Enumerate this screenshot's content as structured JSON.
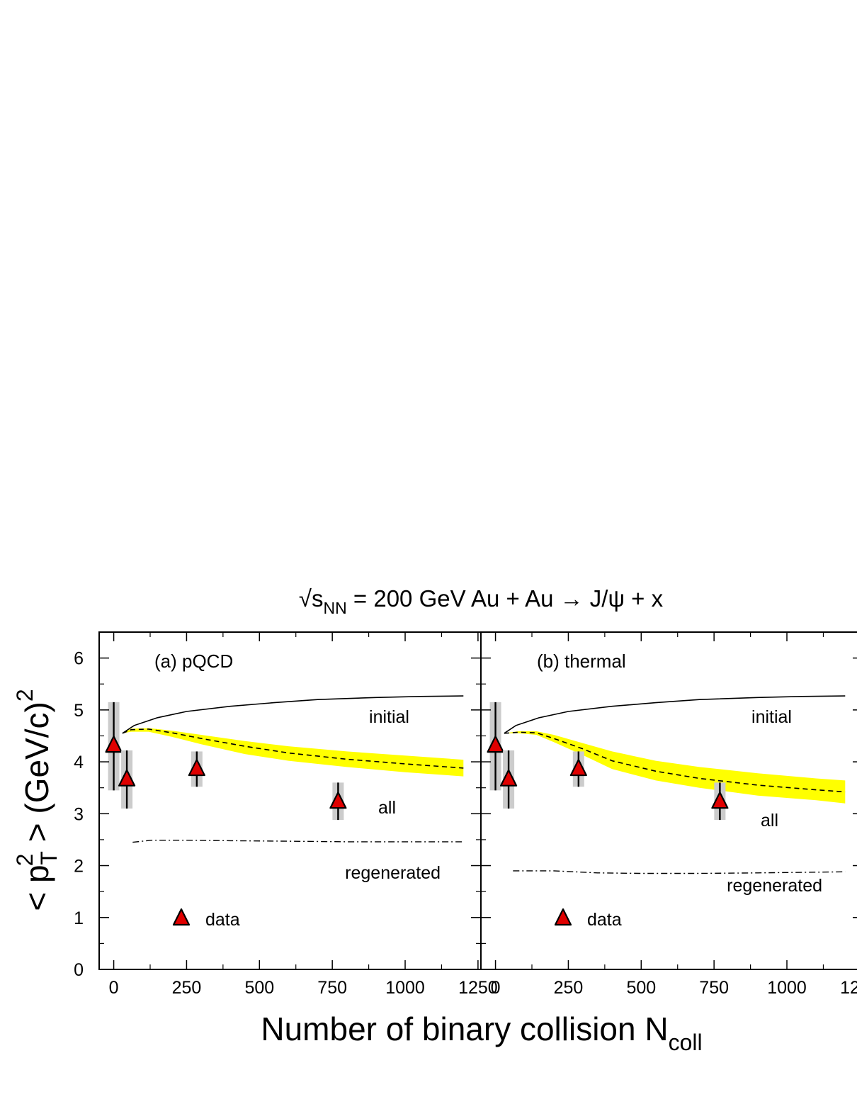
{
  "chart_data": {
    "title_parts": {
      "root": "√",
      "s": "s",
      "sub": "NN",
      "rest": " = 200 GeV Au + Au → J/ψ + x"
    },
    "xlabel_parts": {
      "main": "Number of binary collision N",
      "sub": "coll"
    },
    "ylabel_parts": {
      "lt": "< p",
      "sup": "2",
      "sub": "T",
      "gt": " > (GeV/c)",
      "exp": "2"
    },
    "xlim": [
      -50,
      1260
    ],
    "ylim": [
      0,
      6.5
    ],
    "xticks": [
      0,
      250,
      500,
      750,
      1000,
      1250
    ],
    "xtick_labels": [
      "0",
      "250",
      "500",
      "750",
      "1000",
      "1250"
    ],
    "yticks": [
      0,
      1,
      2,
      3,
      4,
      5,
      6
    ],
    "ytick_labels": [
      "0",
      "1",
      "2",
      "3",
      "4",
      "5",
      "6"
    ],
    "colors": {
      "band": "#ffff00",
      "marker": "#e00000",
      "syst": "#cccccc",
      "line": "#000000"
    },
    "data_series": {
      "name": "data",
      "points": [
        {
          "x": 0,
          "y": 4.3,
          "ylo": 3.45,
          "yhi": 5.15,
          "slo": 3.45,
          "shi": 5.15
        },
        {
          "x": 45,
          "y": 3.65,
          "ylo": 3.1,
          "yhi": 4.22,
          "slo": 3.1,
          "shi": 4.22
        },
        {
          "x": 285,
          "y": 3.85,
          "ylo": 3.52,
          "yhi": 4.2,
          "slo": 3.52,
          "shi": 4.2
        },
        {
          "x": 770,
          "y": 3.22,
          "ylo": 2.88,
          "yhi": 3.6,
          "slo": 2.88,
          "shi": 3.6
        }
      ]
    },
    "panels": [
      {
        "label": "(a) pQCD",
        "labels": {
          "initial": "initial",
          "all": "all",
          "regenerated": "regenerated"
        },
        "initial": [
          [
            30,
            4.55
          ],
          [
            70,
            4.7
          ],
          [
            150,
            4.85
          ],
          [
            250,
            4.97
          ],
          [
            400,
            5.07
          ],
          [
            550,
            5.14
          ],
          [
            700,
            5.2
          ],
          [
            900,
            5.24
          ],
          [
            1050,
            5.26
          ],
          [
            1200,
            5.27
          ]
        ],
        "all": [
          [
            30,
            4.55
          ],
          [
            60,
            4.62
          ],
          [
            120,
            4.63
          ],
          [
            200,
            4.56
          ],
          [
            300,
            4.45
          ],
          [
            450,
            4.3
          ],
          [
            600,
            4.17
          ],
          [
            800,
            4.05
          ],
          [
            1000,
            3.96
          ],
          [
            1200,
            3.88
          ]
        ],
        "band_upper": [
          [
            30,
            4.55
          ],
          [
            60,
            4.64
          ],
          [
            120,
            4.65
          ],
          [
            200,
            4.6
          ],
          [
            300,
            4.52
          ],
          [
            450,
            4.4
          ],
          [
            600,
            4.3
          ],
          [
            800,
            4.2
          ],
          [
            1000,
            4.12
          ],
          [
            1200,
            4.04
          ]
        ],
        "band_lower": [
          [
            30,
            4.55
          ],
          [
            60,
            4.58
          ],
          [
            120,
            4.58
          ],
          [
            200,
            4.48
          ],
          [
            300,
            4.34
          ],
          [
            450,
            4.15
          ],
          [
            600,
            4.02
          ],
          [
            800,
            3.9
          ],
          [
            1000,
            3.8
          ],
          [
            1200,
            3.72
          ]
        ],
        "regenerated": [
          [
            65,
            2.45
          ],
          [
            130,
            2.49
          ],
          [
            250,
            2.49
          ],
          [
            400,
            2.48
          ],
          [
            600,
            2.47
          ],
          [
            800,
            2.46
          ],
          [
            1000,
            2.46
          ],
          [
            1200,
            2.46
          ]
        ]
      },
      {
        "label": "(b) thermal",
        "labels": {
          "initial": "initial",
          "all": "all",
          "regenerated": "regenerated"
        },
        "initial": [
          [
            30,
            4.55
          ],
          [
            70,
            4.7
          ],
          [
            150,
            4.85
          ],
          [
            250,
            4.97
          ],
          [
            400,
            5.07
          ],
          [
            550,
            5.14
          ],
          [
            700,
            5.2
          ],
          [
            900,
            5.24
          ],
          [
            1050,
            5.26
          ],
          [
            1200,
            5.27
          ]
        ],
        "all": [
          [
            30,
            4.55
          ],
          [
            80,
            4.57
          ],
          [
            140,
            4.56
          ],
          [
            200,
            4.45
          ],
          [
            300,
            4.25
          ],
          [
            400,
            4.02
          ],
          [
            550,
            3.82
          ],
          [
            700,
            3.68
          ],
          [
            900,
            3.55
          ],
          [
            1100,
            3.46
          ],
          [
            1200,
            3.42
          ]
        ],
        "band_upper": [
          [
            30,
            4.55
          ],
          [
            80,
            4.59
          ],
          [
            140,
            4.59
          ],
          [
            200,
            4.52
          ],
          [
            300,
            4.36
          ],
          [
            400,
            4.2
          ],
          [
            550,
            4.02
          ],
          [
            700,
            3.9
          ],
          [
            900,
            3.78
          ],
          [
            1100,
            3.68
          ],
          [
            1200,
            3.64
          ]
        ],
        "band_lower": [
          [
            30,
            4.55
          ],
          [
            80,
            4.55
          ],
          [
            140,
            4.52
          ],
          [
            200,
            4.38
          ],
          [
            300,
            4.13
          ],
          [
            400,
            3.86
          ],
          [
            550,
            3.64
          ],
          [
            700,
            3.5
          ],
          [
            900,
            3.35
          ],
          [
            1100,
            3.26
          ],
          [
            1200,
            3.2
          ]
        ],
        "regenerated": [
          [
            60,
            1.9
          ],
          [
            200,
            1.9
          ],
          [
            350,
            1.86
          ],
          [
            500,
            1.85
          ],
          [
            700,
            1.85
          ],
          [
            900,
            1.86
          ],
          [
            1200,
            1.88
          ]
        ]
      }
    ]
  }
}
